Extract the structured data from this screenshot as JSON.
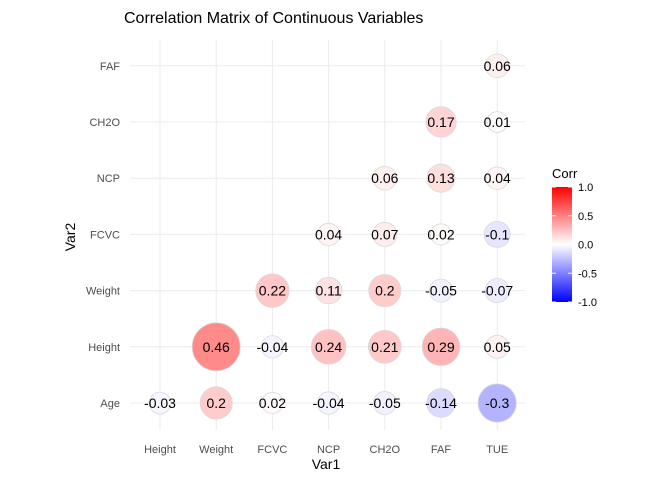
{
  "chart_data": {
    "type": "heatmap",
    "title": "Correlation Matrix of Continuous Variables",
    "xlabel": "Var1",
    "ylabel": "Var2",
    "x_categories": [
      "Height",
      "Weight",
      "FCVC",
      "NCP",
      "CH2O",
      "FAF",
      "TUE"
    ],
    "y_categories": [
      "Age",
      "Height",
      "Weight",
      "FCVC",
      "NCP",
      "CH2O",
      "FAF"
    ],
    "cells": [
      {
        "x": "Height",
        "y": "Age",
        "value": -0.03
      },
      {
        "x": "Weight",
        "y": "Age",
        "value": 0.2
      },
      {
        "x": "FCVC",
        "y": "Age",
        "value": 0.02
      },
      {
        "x": "NCP",
        "y": "Age",
        "value": -0.04
      },
      {
        "x": "CH2O",
        "y": "Age",
        "value": -0.05
      },
      {
        "x": "FAF",
        "y": "Age",
        "value": -0.14
      },
      {
        "x": "TUE",
        "y": "Age",
        "value": -0.3
      },
      {
        "x": "Weight",
        "y": "Height",
        "value": 0.46
      },
      {
        "x": "FCVC",
        "y": "Height",
        "value": -0.04
      },
      {
        "x": "NCP",
        "y": "Height",
        "value": 0.24
      },
      {
        "x": "CH2O",
        "y": "Height",
        "value": 0.21
      },
      {
        "x": "FAF",
        "y": "Height",
        "value": 0.29
      },
      {
        "x": "TUE",
        "y": "Height",
        "value": 0.05
      },
      {
        "x": "FCVC",
        "y": "Weight",
        "value": 0.22
      },
      {
        "x": "NCP",
        "y": "Weight",
        "value": 0.11
      },
      {
        "x": "CH2O",
        "y": "Weight",
        "value": 0.2
      },
      {
        "x": "FAF",
        "y": "Weight",
        "value": -0.05
      },
      {
        "x": "TUE",
        "y": "Weight",
        "value": -0.07
      },
      {
        "x": "NCP",
        "y": "FCVC",
        "value": 0.04
      },
      {
        "x": "CH2O",
        "y": "FCVC",
        "value": 0.07
      },
      {
        "x": "FAF",
        "y": "FCVC",
        "value": 0.02
      },
      {
        "x": "TUE",
        "y": "FCVC",
        "value": -0.1
      },
      {
        "x": "CH2O",
        "y": "NCP",
        "value": 0.06
      },
      {
        "x": "FAF",
        "y": "NCP",
        "value": 0.13
      },
      {
        "x": "TUE",
        "y": "NCP",
        "value": 0.04
      },
      {
        "x": "FAF",
        "y": "CH2O",
        "value": 0.17
      },
      {
        "x": "TUE",
        "y": "CH2O",
        "value": 0.01
      },
      {
        "x": "TUE",
        "y": "FAF",
        "value": 0.06
      }
    ],
    "legend": {
      "title": "Corr",
      "range": [
        -1,
        1
      ],
      "ticks": [
        "1.0",
        "0.5",
        "0.0",
        "-0.5",
        "-1.0"
      ],
      "tick_values": [
        1,
        0.5,
        0,
        -0.5,
        -1
      ],
      "placement": "right"
    },
    "colors": {
      "low": "#0000ff",
      "mid": "#ffffff",
      "high": "#ff0000"
    },
    "grid": true
  }
}
